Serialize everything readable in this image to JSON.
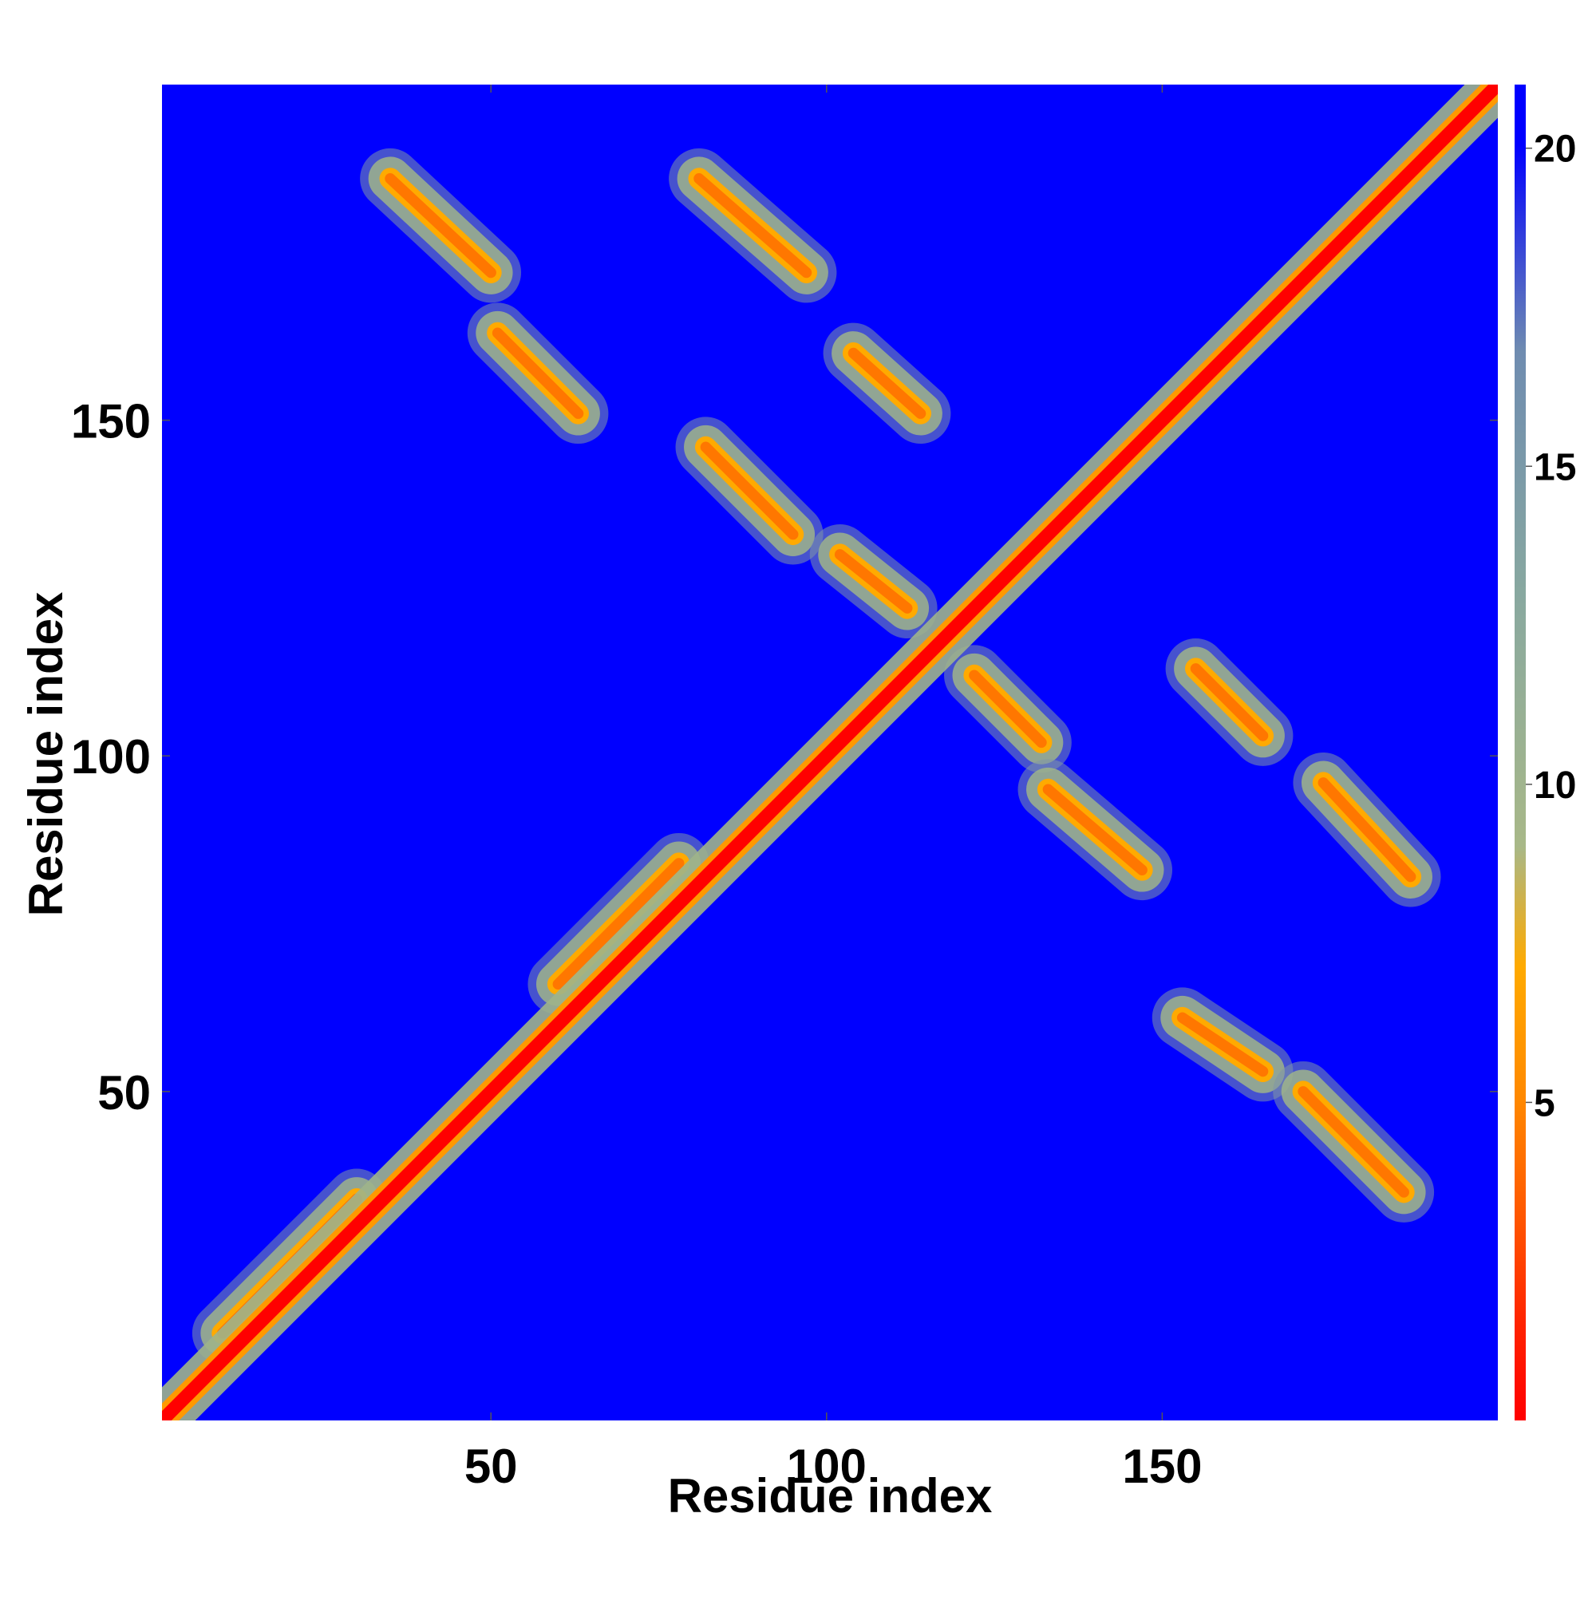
{
  "chart_data": {
    "type": "heatmap",
    "title": "",
    "xlabel": "Residue index",
    "ylabel": "Residue index",
    "xlim": [
      1,
      200
    ],
    "ylim": [
      1,
      200
    ],
    "x_ticks": [
      50,
      100,
      150
    ],
    "y_ticks": [
      50,
      100,
      150
    ],
    "colorbar": {
      "ticks": [
        5,
        10,
        15,
        20
      ],
      "range": [
        0,
        21
      ],
      "colors": [
        "#ff0000",
        "#ff3300",
        "#ff6600",
        "#ff9900",
        "#ffaa00",
        "#a8b888",
        "#88a8a0",
        "#6f8cb0",
        "#0000ff"
      ]
    },
    "background_color": "#0000ff",
    "diagonal_value": 1.5,
    "contact_bands": [
      {
        "x": [
          35,
          50
        ],
        "y": [
          186,
          172
        ]
      },
      {
        "x": [
          51,
          63
        ],
        "y": [
          163,
          151
        ]
      },
      {
        "x": [
          81,
          97
        ],
        "y": [
          186,
          172
        ]
      },
      {
        "x": [
          104,
          114
        ],
        "y": [
          160,
          151
        ]
      },
      {
        "x": [
          82,
          95
        ],
        "y": [
          146,
          133
        ]
      },
      {
        "x": [
          102,
          112
        ],
        "y": [
          130,
          122
        ]
      },
      {
        "x": [
          122,
          132
        ],
        "y": [
          112,
          102
        ]
      },
      {
        "x": [
          133,
          147
        ],
        "y": [
          95,
          83
        ]
      },
      {
        "x": [
          155,
          165
        ],
        "y": [
          113,
          103
        ]
      },
      {
        "x": [
          174,
          187
        ],
        "y": [
          96,
          82
        ]
      },
      {
        "x": [
          153,
          165
        ],
        "y": [
          61,
          53
        ]
      },
      {
        "x": [
          171,
          186
        ],
        "y": [
          50,
          35
        ]
      },
      {
        "x": [
          10,
          30
        ],
        "y": [
          14,
          34
        ]
      },
      {
        "x": [
          60,
          78
        ],
        "y": [
          66,
          84
        ]
      }
    ]
  }
}
